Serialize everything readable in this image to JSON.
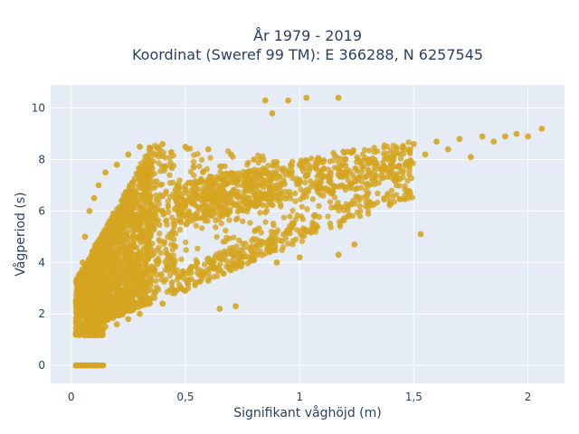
{
  "chart_data": {
    "type": "scatter",
    "title_line1": "År 1979 - 2019",
    "title_line2": "Koordinat (Sweref 99 TM): E 366288, N 6257545",
    "xlabel": "Signifikant våghöjd (m)",
    "ylabel": "Vågperiod (s)",
    "xlim": [
      -0.09,
      2.16
    ],
    "ylim": [
      -0.7,
      10.9
    ],
    "xticks": [
      0,
      0.5,
      1,
      1.5,
      2
    ],
    "xtick_labels": [
      "0",
      "0,5",
      "1",
      "1,5",
      "2"
    ],
    "yticks": [
      0,
      2,
      4,
      6,
      8,
      10
    ],
    "ytick_labels": [
      "0",
      "2",
      "4",
      "6",
      "8",
      "10"
    ],
    "grid": true,
    "legend": "none",
    "marker_color": "#D4A520",
    "background_color": "#E5ECF6",
    "series": [
      {
        "values": [
          {
            "x": 0.02,
            "y": 0.0
          },
          {
            "x": 0.05,
            "y": 0.0
          },
          {
            "x": 0.08,
            "y": 0.0
          },
          {
            "x": 0.11,
            "y": 0.0
          },
          {
            "x": 0.14,
            "y": 0.0
          },
          {
            "x": 0.02,
            "y": 1.2
          },
          {
            "x": 0.05,
            "y": 1.3
          },
          {
            "x": 0.08,
            "y": 1.2
          },
          {
            "x": 0.1,
            "y": 1.4
          },
          {
            "x": 0.15,
            "y": 1.5
          },
          {
            "x": 0.2,
            "y": 1.6
          },
          {
            "x": 0.25,
            "y": 1.8
          },
          {
            "x": 0.3,
            "y": 2.0
          },
          {
            "x": 0.4,
            "y": 2.4
          },
          {
            "x": 0.5,
            "y": 2.9
          },
          {
            "x": 0.6,
            "y": 3.3
          },
          {
            "x": 0.7,
            "y": 3.7
          },
          {
            "x": 0.8,
            "y": 4.1
          },
          {
            "x": 0.03,
            "y": 2.0
          },
          {
            "x": 0.04,
            "y": 3.0
          },
          {
            "x": 0.05,
            "y": 4.0
          },
          {
            "x": 0.06,
            "y": 5.0
          },
          {
            "x": 0.08,
            "y": 6.0
          },
          {
            "x": 0.1,
            "y": 6.5
          },
          {
            "x": 0.12,
            "y": 7.0
          },
          {
            "x": 0.15,
            "y": 7.5
          },
          {
            "x": 0.2,
            "y": 7.8
          },
          {
            "x": 0.25,
            "y": 8.2
          },
          {
            "x": 0.3,
            "y": 8.5
          },
          {
            "x": 0.4,
            "y": 8.6
          },
          {
            "x": 0.5,
            "y": 8.5
          },
          {
            "x": 0.6,
            "y": 8.4
          },
          {
            "x": 0.7,
            "y": 8.2
          },
          {
            "x": 0.8,
            "y": 8.0
          },
          {
            "x": 0.9,
            "y": 7.9
          },
          {
            "x": 1.0,
            "y": 7.8
          },
          {
            "x": 1.1,
            "y": 7.9
          },
          {
            "x": 1.2,
            "y": 8.0
          },
          {
            "x": 1.3,
            "y": 8.0
          },
          {
            "x": 1.4,
            "y": 8.1
          },
          {
            "x": 0.2,
            "y": 5.5
          },
          {
            "x": 0.3,
            "y": 5.8
          },
          {
            "x": 0.4,
            "y": 6.0
          },
          {
            "x": 0.5,
            "y": 6.2
          },
          {
            "x": 0.6,
            "y": 6.5
          },
          {
            "x": 0.7,
            "y": 6.7
          },
          {
            "x": 0.8,
            "y": 6.9
          },
          {
            "x": 0.9,
            "y": 7.0
          },
          {
            "x": 1.0,
            "y": 7.2
          },
          {
            "x": 1.1,
            "y": 7.3
          },
          {
            "x": 1.2,
            "y": 7.5
          },
          {
            "x": 1.3,
            "y": 7.6
          },
          {
            "x": 1.4,
            "y": 7.8
          },
          {
            "x": 0.85,
            "y": 10.3
          },
          {
            "x": 0.95,
            "y": 10.3
          },
          {
            "x": 1.03,
            "y": 10.4
          },
          {
            "x": 1.17,
            "y": 10.4
          },
          {
            "x": 0.88,
            "y": 9.8
          },
          {
            "x": 1.5,
            "y": 8.6
          },
          {
            "x": 1.6,
            "y": 8.7
          },
          {
            "x": 1.7,
            "y": 8.8
          },
          {
            "x": 1.8,
            "y": 8.9
          },
          {
            "x": 1.9,
            "y": 8.9
          },
          {
            "x": 2.0,
            "y": 8.9
          },
          {
            "x": 2.06,
            "y": 9.2
          },
          {
            "x": 1.55,
            "y": 8.2
          },
          {
            "x": 1.65,
            "y": 8.4
          },
          {
            "x": 1.75,
            "y": 8.1
          },
          {
            "x": 1.85,
            "y": 8.7
          },
          {
            "x": 1.95,
            "y": 9.0
          },
          {
            "x": 1.47,
            "y": 7.9
          },
          {
            "x": 1.53,
            "y": 5.1
          },
          {
            "x": 1.24,
            "y": 4.7
          },
          {
            "x": 1.17,
            "y": 4.3
          },
          {
            "x": 1.0,
            "y": 4.2
          },
          {
            "x": 0.9,
            "y": 4.0
          },
          {
            "x": 0.72,
            "y": 2.3
          },
          {
            "x": 0.65,
            "y": 2.2
          }
        ]
      }
    ]
  }
}
